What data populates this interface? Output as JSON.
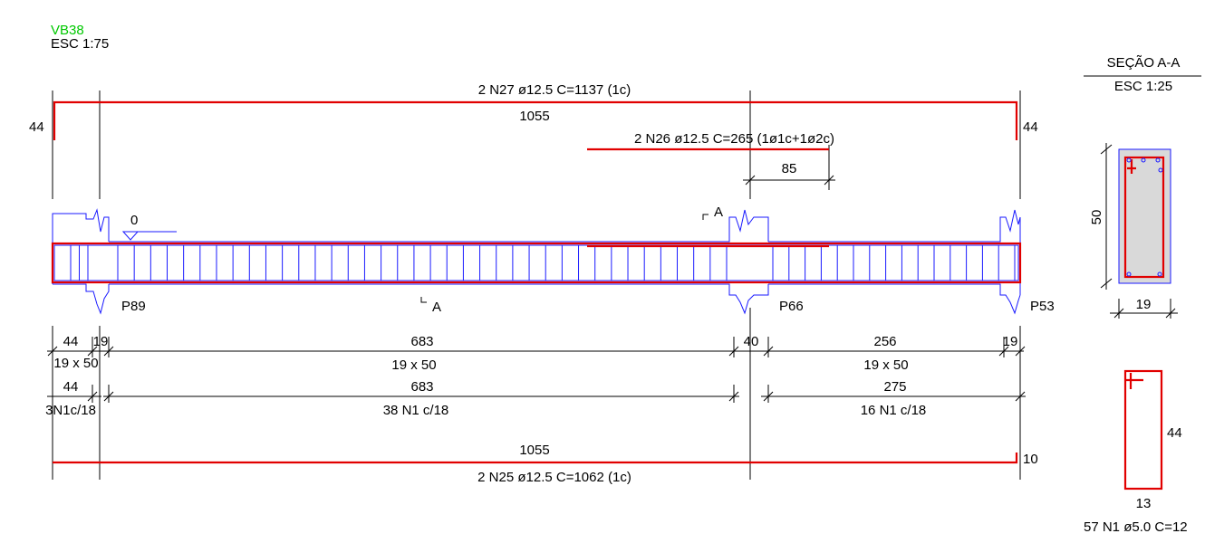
{
  "title": {
    "name": "VB38",
    "scale": "ESC 1:75",
    "color": "#00c800"
  },
  "colors": {
    "rebar": "#e10000",
    "stirrup": "#1a1aff",
    "dim": "#000000",
    "concrete": "#d9d9d9"
  },
  "bars": {
    "top_main": {
      "label": "2 N27 ø12.5 C=1137 (1c)",
      "length": "1055",
      "hook_left": "44",
      "hook_right": "44"
    },
    "top_extra": {
      "label": "2 N26 ø12.5 C=265 (1ø1c+1ø2c)",
      "length": "85"
    },
    "bottom": {
      "length": "1055",
      "label": "2 N25 ø12.5 C=1062 (1c)",
      "hook": "10"
    }
  },
  "elevation": {
    "level": "0",
    "section_mark": "A"
  },
  "supports": [
    {
      "name": "P89"
    },
    {
      "name": "P66"
    },
    {
      "name": "P53"
    }
  ],
  "dims_row1": [
    {
      "value": "44",
      "sub": "19 x 50"
    },
    {
      "value": "19"
    },
    {
      "value": "683",
      "sub": "19 x 50"
    },
    {
      "value": "40"
    },
    {
      "value": "256",
      "sub": "19 x 50"
    },
    {
      "value": "19"
    }
  ],
  "dims_row2": [
    {
      "value": "44",
      "sub": "3N1c/18"
    },
    {
      "value": "683",
      "sub": "38 N1 c/18"
    },
    {
      "value": "275",
      "sub": "16 N1 c/18"
    }
  ],
  "section": {
    "title": "SEÇÃO A-A",
    "scale": "ESC 1:25",
    "height": "50",
    "width": "19"
  },
  "stirrup_detail": {
    "height": "44",
    "width": "13",
    "label": "57 N1 ø5.0 C=12"
  }
}
